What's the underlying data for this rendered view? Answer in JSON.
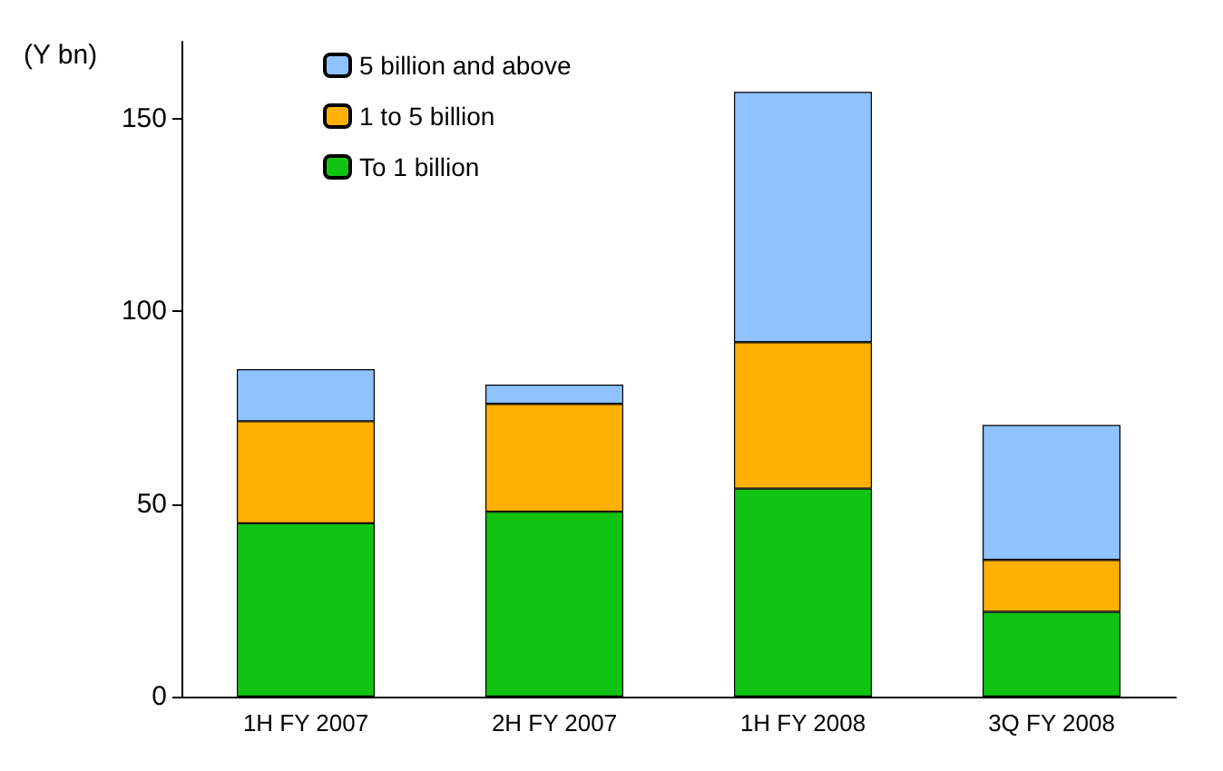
{
  "chart_data": {
    "type": "bar",
    "stacked": true,
    "ylabel": "(Y bn)",
    "categories": [
      "1H FY 2007",
      "2H FY 2007",
      "1H FY 2008",
      "3Q FY 2008"
    ],
    "series": [
      {
        "name": "To 1 billion",
        "color": "#11c411",
        "values": [
          45,
          48,
          54,
          22
        ]
      },
      {
        "name": "1 to 5 billion",
        "color": "#ffb000",
        "values": [
          26.5,
          28,
          38,
          13.5
        ]
      },
      {
        "name": "5 billion and above",
        "color": "#8fc3ff",
        "values": [
          13.5,
          5,
          65,
          35
        ]
      }
    ],
    "ylim": [
      0,
      170
    ],
    "yticks": [
      0,
      50,
      100,
      150
    ],
    "grid": false,
    "legend": "top left"
  }
}
